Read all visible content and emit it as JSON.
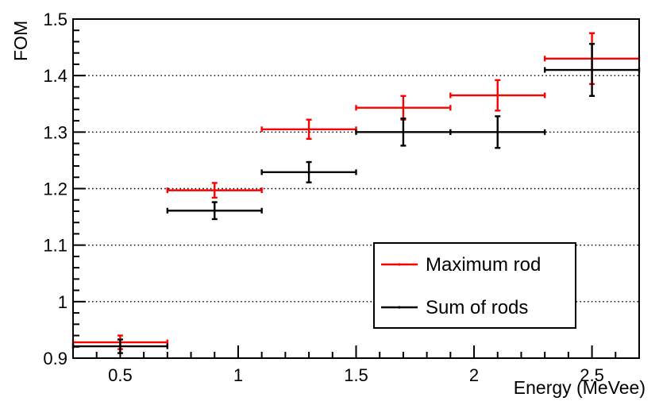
{
  "page": {
    "background": "#ffffff"
  },
  "chart_data": {
    "type": "scatter",
    "subtype": "error-bar-graph",
    "title": "",
    "xlabel": "Energy (MeVee)",
    "ylabel": "FOM",
    "xlim": [
      0.3,
      2.7
    ],
    "ylim": [
      0.9,
      1.5
    ],
    "x_ticks": {
      "values": [
        0.5,
        1,
        1.5,
        2,
        2.5
      ],
      "labels": [
        "0.5",
        "1",
        "1.5",
        "2",
        "2.5"
      ],
      "minor_step": 0.1
    },
    "y_ticks": {
      "values": [
        0.9,
        1.0,
        1.1,
        1.2,
        1.3,
        1.4,
        1.5
      ],
      "labels": [
        "0.9",
        "1",
        "1.1",
        "1.2",
        "1.3",
        "1.4",
        "1.5"
      ],
      "minor_step": 0.02
    },
    "grid": {
      "horizontal_dotted_at": [
        1.0,
        1.1,
        1.2,
        1.3,
        1.4
      ],
      "style": "dotted",
      "color": "#000000"
    },
    "axis_color": "#000000",
    "legend": {
      "position": "bottom-right",
      "entries": [
        "Maximum rod",
        "Sum of rods"
      ]
    },
    "series": [
      {
        "name": "Maximum rod",
        "color": "#ff0000",
        "points": [
          {
            "x": 0.5,
            "y": 0.928,
            "ex": 0.2,
            "ey": 0.012
          },
          {
            "x": 0.9,
            "y": 1.197,
            "ex": 0.2,
            "ey": 0.013
          },
          {
            "x": 1.3,
            "y": 1.305,
            "ex": 0.2,
            "ey": 0.017
          },
          {
            "x": 1.7,
            "y": 1.343,
            "ex": 0.2,
            "ey": 0.021
          },
          {
            "x": 2.1,
            "y": 1.365,
            "ex": 0.2,
            "ey": 0.027
          },
          {
            "x": 2.5,
            "y": 1.43,
            "ex": 0.2,
            "ey": 0.045
          }
        ]
      },
      {
        "name": "Sum of rods",
        "color": "#000000",
        "points": [
          {
            "x": 0.5,
            "y": 0.921,
            "ex": 0.2,
            "ey": 0.012
          },
          {
            "x": 0.9,
            "y": 1.161,
            "ex": 0.2,
            "ey": 0.015
          },
          {
            "x": 1.3,
            "y": 1.229,
            "ex": 0.2,
            "ey": 0.018
          },
          {
            "x": 1.7,
            "y": 1.3,
            "ex": 0.2,
            "ey": 0.024
          },
          {
            "x": 2.1,
            "y": 1.3,
            "ex": 0.2,
            "ey": 0.028
          },
          {
            "x": 2.5,
            "y": 1.41,
            "ex": 0.2,
            "ey": 0.046
          }
        ]
      }
    ]
  }
}
